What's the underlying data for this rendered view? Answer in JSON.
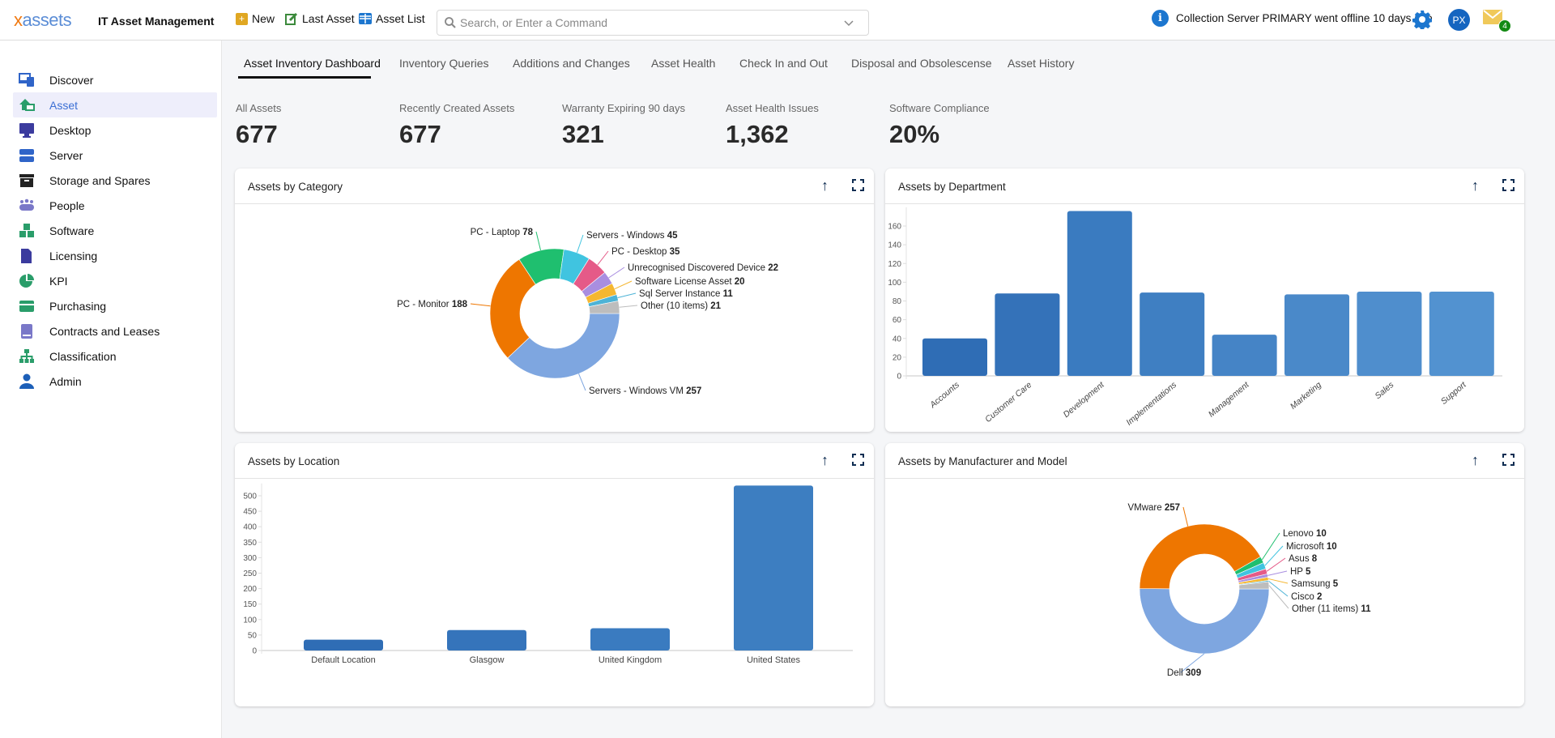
{
  "header": {
    "logo_x": "x",
    "logo_rest": "assets",
    "app_title": "IT Asset Management",
    "new_label": "New",
    "last_asset_label": "Last Asset",
    "asset_list_label": "Asset List",
    "search_placeholder": "Search, or Enter a Command",
    "search_value": "",
    "notification": "Collection Server PRIMARY went offline 10 days ago",
    "avatar_initials": "PX",
    "mail_count": "4"
  },
  "sidebar": {
    "items": [
      {
        "label": "Discover",
        "icon": "discover-icon",
        "color": "#2f64c8"
      },
      {
        "label": "Asset",
        "icon": "asset-icon",
        "color": "#2a9d6a",
        "active": true
      },
      {
        "label": "Desktop",
        "icon": "desktop-icon",
        "color": "#3b3b9e"
      },
      {
        "label": "Server",
        "icon": "server-icon",
        "color": "#2f64c8"
      },
      {
        "label": "Storage and Spares",
        "icon": "archive-box-icon",
        "color": "#222"
      },
      {
        "label": "People",
        "icon": "people-icon",
        "color": "#7a78c8"
      },
      {
        "label": "Software",
        "icon": "cubes-icon",
        "color": "#2a9d6a"
      },
      {
        "label": "Licensing",
        "icon": "license-document-icon",
        "color": "#3b3b9e"
      },
      {
        "label": "KPI",
        "icon": "pie-chart-icon",
        "color": "#2a9d6a"
      },
      {
        "label": "Purchasing",
        "icon": "credit-card-icon",
        "color": "#2a9d6a"
      },
      {
        "label": "Contracts and Leases",
        "icon": "book-icon",
        "color": "#7a78c8"
      },
      {
        "label": "Classification",
        "icon": "hierarchy-icon",
        "color": "#2a9d6a"
      },
      {
        "label": "Admin",
        "icon": "user-icon",
        "color": "#1c5fb8"
      }
    ]
  },
  "tabs": [
    "Asset Inventory Dashboard",
    "Inventory Queries",
    "Additions and Changes",
    "Asset Health",
    "Check In and Out",
    "Disposal and Obsolescense",
    "Asset History"
  ],
  "kpis": [
    {
      "label": "All Assets",
      "value": "677"
    },
    {
      "label": "Recently Created Assets",
      "value": "677"
    },
    {
      "label": "Warranty Expiring 90 days",
      "value": "321"
    },
    {
      "label": "Asset Health Issues",
      "value": "1,362"
    },
    {
      "label": "Software Compliance",
      "value": "20%"
    }
  ],
  "cards": {
    "category": "Assets by Category",
    "department": "Assets by Department",
    "location": "Assets by Location",
    "manufacturer": "Assets by Manufacturer and Model"
  },
  "chart_data": [
    {
      "type": "pie",
      "donut": true,
      "title": "Assets by Category",
      "start": "3 o'clock, clockwise",
      "labels": [
        "Servers - Windows VM",
        "PC - Monitor",
        "PC - Laptop",
        "Servers - Windows",
        "PC - Desktop",
        "Unrecognised Discovered Device",
        "Software License Asset",
        "Sql Server Instance",
        "Other (10 items)"
      ],
      "values": [
        257,
        188,
        78,
        45,
        35,
        22,
        20,
        11,
        21
      ],
      "colors": [
        "#7ea6e0",
        "#ee7600",
        "#1fbf6f",
        "#40c4e0",
        "#e55a88",
        "#a98ee0",
        "#f5b731",
        "#4db3d6",
        "#bdbdbd"
      ]
    },
    {
      "type": "bar",
      "title": "Assets by Department",
      "categories": [
        "Accounts",
        "Customer Care",
        "Development",
        "Implementations",
        "Management",
        "Marketing",
        "Sales",
        "Support"
      ],
      "values": [
        40,
        88,
        176,
        89,
        44,
        87,
        90,
        90
      ],
      "yticks": [
        0,
        20,
        40,
        60,
        80,
        100,
        120,
        140,
        160
      ],
      "ylim": [
        0,
        180
      ],
      "colors": [
        "#2f6db5",
        "#3472b9",
        "#3a7bc0",
        "#3f7fc2",
        "#4584c6",
        "#4a89c9",
        "#4f8ecd",
        "#5292d0"
      ]
    },
    {
      "type": "bar",
      "title": "Assets by Location",
      "categories": [
        "Default Location",
        "Glasgow",
        "United Kingdom",
        "United States"
      ],
      "values": [
        35,
        66,
        72,
        533
      ],
      "yticks": [
        0,
        50,
        100,
        150,
        200,
        250,
        300,
        350,
        400,
        450,
        500
      ],
      "ylim": [
        0,
        540
      ],
      "colors": [
        "#2f6db5",
        "#3574bb",
        "#3a7bc0",
        "#3d7ec1"
      ]
    },
    {
      "type": "pie",
      "donut": true,
      "title": "Assets by Manufacturer and Model",
      "start": "3 o'clock, clockwise",
      "labels": [
        "Dell",
        "VMware",
        "Lenovo",
        "Microsoft",
        "Asus",
        "HP",
        "Samsung",
        "Cisco",
        "Other (11 items)"
      ],
      "values": [
        309,
        257,
        10,
        10,
        8,
        5,
        5,
        2,
        11
      ],
      "colors": [
        "#7ea6e0",
        "#ee7600",
        "#1fbf6f",
        "#40c4e0",
        "#e55a88",
        "#a98ee0",
        "#f5b731",
        "#4db3d6",
        "#bdbdbd"
      ]
    }
  ]
}
